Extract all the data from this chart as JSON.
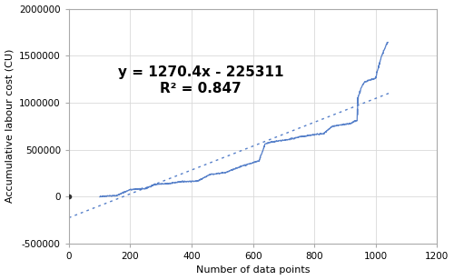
{
  "xlabel": "Number of data points",
  "ylabel": "Accumulative labour cost (CU)",
  "xlim": [
    0,
    1200
  ],
  "ylim": [
    -500000,
    2000000
  ],
  "xticks": [
    0,
    200,
    400,
    600,
    800,
    1000,
    1200
  ],
  "yticks": [
    -500000,
    0,
    500000,
    1000000,
    1500000,
    2000000
  ],
  "equation_text": "y = 1270.4x - 225311",
  "r2_text": "R² = 0.847",
  "slope": 1270.4,
  "intercept": -225311,
  "line_color": "#4472C4",
  "trendline_color": "#4472C4",
  "background_color": "#ffffff",
  "grid_color": "#d9d9d9",
  "annotation_fontsize": 11,
  "axis_fontsize": 8,
  "n_points": 1050
}
